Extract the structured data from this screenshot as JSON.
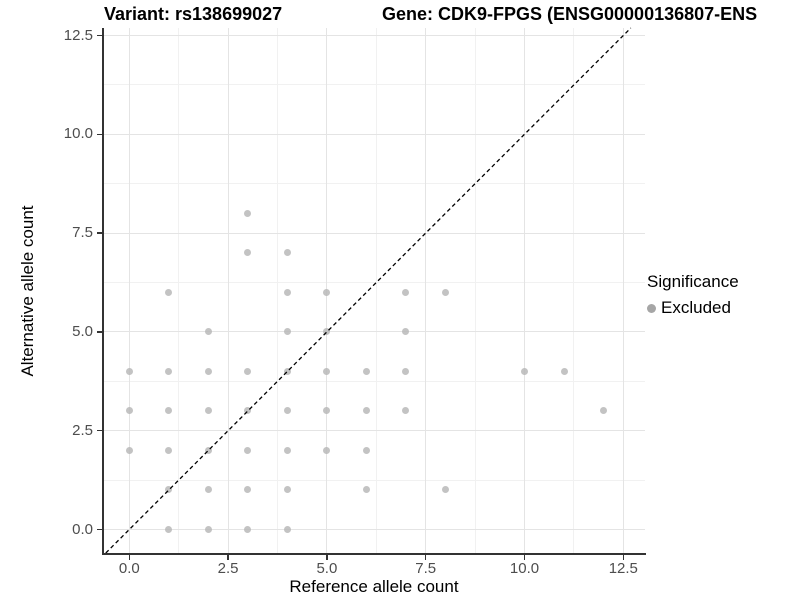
{
  "titles": {
    "variant": "Variant: rs138699027",
    "gene": "Gene: CDK9-FPGS (ENSG00000136807-ENS"
  },
  "legend": {
    "title": "Significance",
    "items": [
      {
        "label": "Excluded",
        "color": "#a6a6a6"
      }
    ]
  },
  "colors": {
    "point": "#b9b9b9",
    "axis_line": "#333333",
    "tick_text": "#4d4d4d",
    "major_grid": "#e4e4e4",
    "minor_grid": "#f1f1f1",
    "reference_line": "#000000",
    "background": "#ffffff"
  },
  "chart_data": {
    "type": "scatter",
    "title": "Variant: rs138699027   |   Gene: CDK9-FPGS (ENSG00000136807-ENS",
    "x_label": "Reference allele count",
    "y_label": "Alternative allele count",
    "xlim": [
      -0.64,
      13.05
    ],
    "ylim": [
      -0.59,
      12.69
    ],
    "grid": "major and minor gridlines on",
    "legend_position": "right",
    "x_ticks": [
      {
        "v": 0,
        "label": "0.0"
      },
      {
        "v": 2.5,
        "label": "2.5"
      },
      {
        "v": 5,
        "label": "5.0"
      },
      {
        "v": 7.5,
        "label": "7.5"
      },
      {
        "v": 10,
        "label": "10.0"
      },
      {
        "v": 12.5,
        "label": "12.5"
      }
    ],
    "y_ticks": [
      {
        "v": 0,
        "label": "0.0"
      },
      {
        "v": 2.5,
        "label": "2.5"
      },
      {
        "v": 5,
        "label": "5.0"
      },
      {
        "v": 7.5,
        "label": "7.5"
      },
      {
        "v": 10,
        "label": "10.0"
      },
      {
        "v": 12.5,
        "label": "12.5"
      }
    ],
    "minor_ticks": [
      1.25,
      3.75,
      6.25,
      8.75,
      11.25
    ],
    "reference_line": {
      "type": "identity y=x",
      "style": "dashed",
      "color": "#000000"
    },
    "series": [
      {
        "name": "Excluded",
        "color": "#b9b9b9",
        "points": [
          [
            1,
            0
          ],
          [
            2,
            0
          ],
          [
            3,
            0
          ],
          [
            4,
            0
          ],
          [
            1,
            1
          ],
          [
            2,
            1
          ],
          [
            3,
            1
          ],
          [
            4,
            1
          ],
          [
            6,
            1
          ],
          [
            8,
            1
          ],
          [
            0,
            2
          ],
          [
            1,
            2
          ],
          [
            2,
            2
          ],
          [
            3,
            2
          ],
          [
            4,
            2
          ],
          [
            5,
            2
          ],
          [
            6,
            2
          ],
          [
            0,
            3
          ],
          [
            1,
            3
          ],
          [
            2,
            3
          ],
          [
            3,
            3
          ],
          [
            4,
            3
          ],
          [
            5,
            3
          ],
          [
            6,
            3
          ],
          [
            7,
            3
          ],
          [
            12,
            3
          ],
          [
            0,
            4
          ],
          [
            1,
            4
          ],
          [
            2,
            4
          ],
          [
            3,
            4
          ],
          [
            4,
            4
          ],
          [
            5,
            4
          ],
          [
            6,
            4
          ],
          [
            7,
            4
          ],
          [
            10,
            4
          ],
          [
            11,
            4
          ],
          [
            2,
            5
          ],
          [
            4,
            5
          ],
          [
            5,
            5
          ],
          [
            7,
            5
          ],
          [
            1,
            6
          ],
          [
            4,
            6
          ],
          [
            5,
            6
          ],
          [
            7,
            6
          ],
          [
            8,
            6
          ],
          [
            3,
            7
          ],
          [
            4,
            7
          ],
          [
            3,
            8
          ]
        ]
      }
    ]
  }
}
